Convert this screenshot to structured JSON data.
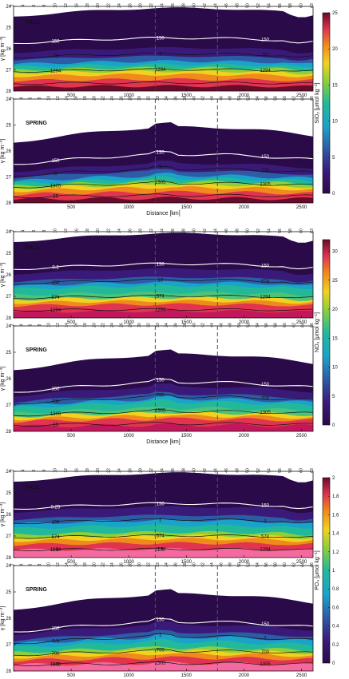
{
  "chart_data": [
    {
      "type": "heatmap",
      "variable": "SiO2",
      "colorbar_label": "SiO₂ [μmol kg⁻¹]",
      "colorbar_ticks": [
        "0",
        "5",
        "10",
        "15",
        "20",
        "25"
      ],
      "colorbar_range": [
        0,
        25
      ],
      "panels": [
        {
          "title": "FALL",
          "ylabel": "γ [kg m⁻³]",
          "yticks": [
            "24",
            "25",
            "26",
            "27",
            "28"
          ],
          "xticks": [
            "500",
            "1000",
            "1500",
            "2000",
            "2500"
          ],
          "station_ticks": [
            "2",
            "4",
            "6",
            "8",
            "10",
            "12",
            "16",
            "18",
            "20",
            "22",
            "24",
            "26",
            "29",
            "32",
            "34",
            "36",
            "38",
            "40",
            "42",
            "44",
            "46",
            "48",
            "50",
            "52",
            "54",
            "56",
            "58",
            "60",
            "63"
          ],
          "contour_labels": [
            "150",
            "150",
            "150",
            "75",
            "5",
            "33",
            "1294",
            "1294",
            "1294"
          ],
          "station_lines": [
            32,
            42
          ]
        },
        {
          "title": "SPRING",
          "ylabel": "γ [kg m⁻³]",
          "xlabel": "Distance [km]",
          "yticks": [
            "24",
            "25",
            "26",
            "27",
            "28"
          ],
          "xticks": [
            "500",
            "1000",
            "1500",
            "2000",
            "2500"
          ],
          "station_ticks": [
            "2",
            "4",
            "6",
            "8",
            "10",
            "12",
            "14",
            "16",
            "18",
            "20",
            "22",
            "24",
            "26",
            "28",
            "30",
            "32",
            "33",
            "34",
            "36",
            "38",
            "40",
            "42",
            "44",
            "46",
            "48",
            "50",
            "52",
            "54",
            "56",
            "58",
            "60",
            "62",
            "64",
            "66"
          ],
          "contour_labels": [
            "150",
            "150",
            "150",
            "5",
            "5",
            "700",
            "1305",
            "1305",
            "1305",
            "25"
          ],
          "station_lines": [
            32,
            42
          ]
        }
      ]
    },
    {
      "type": "heatmap",
      "variable": "NO3",
      "colorbar_label": "NO₃ [μmol kg⁻¹]",
      "colorbar_ticks": [
        "0",
        "5",
        "10",
        "15",
        "20",
        "25",
        "30"
      ],
      "colorbar_range": [
        0,
        32
      ],
      "panels": [
        {
          "title": "FALL",
          "ylabel": "γ [kg m⁻³]",
          "yticks": [
            "24",
            "25",
            "26",
            "27",
            "28"
          ],
          "xticks": [
            "500",
            "1000",
            "1500",
            "2000",
            "2500"
          ],
          "station_ticks": [
            "2",
            "4",
            "6",
            "8",
            "10",
            "12",
            "16",
            "18",
            "20",
            "22",
            "24",
            "26",
            "29",
            "32",
            "34",
            "36",
            "38",
            "40",
            "42",
            "44",
            "46",
            "48",
            "50",
            "52",
            "54",
            "56",
            "58",
            "60",
            "63"
          ],
          "contour_labels": [
            "0.2",
            "150",
            "150",
            "150",
            "10",
            "574",
            "574",
            "574",
            "1294",
            "1294",
            "1294"
          ],
          "station_lines": [
            32,
            42
          ]
        },
        {
          "title": "SPRING",
          "ylabel": "γ [kg m⁻³]",
          "xlabel": "Distance [km]",
          "yticks": [
            "24",
            "25",
            "26",
            "27",
            "28"
          ],
          "xticks": [
            "500",
            "1000",
            "1500",
            "2000",
            "2500"
          ],
          "station_ticks": [
            "2",
            "4",
            "6",
            "8",
            "10",
            "12",
            "14",
            "16",
            "18",
            "20",
            "22",
            "24",
            "26",
            "28",
            "30",
            "32",
            "33",
            "34",
            "36",
            "38",
            "40",
            "42",
            "44",
            "46",
            "48",
            "50",
            "52",
            "54",
            "56",
            "58",
            "60",
            "62",
            "64",
            "66"
          ],
          "contour_labels": [
            "150",
            "150",
            "150",
            "700",
            "700",
            "700",
            "1305",
            "1305",
            "1305",
            "25"
          ],
          "station_lines": [
            32,
            42
          ]
        }
      ]
    },
    {
      "type": "heatmap",
      "variable": "PO4",
      "colorbar_label": "PO₄ [μmol kg⁻¹]",
      "colorbar_ticks": [
        "0",
        "0.2",
        "0.4",
        "0.6",
        "0.8",
        "1",
        "1.2",
        "1.4",
        "1.6",
        "1.8",
        "2"
      ],
      "colorbar_range": [
        0,
        2
      ],
      "panels": [
        {
          "title": "FALL",
          "ylabel": "γ [kg m⁻³]",
          "yticks": [
            "24",
            "25",
            "26",
            "27",
            "28"
          ],
          "xticks": [
            "500",
            "1000",
            "1500",
            "2000",
            "2500"
          ],
          "station_ticks": [
            "2",
            "4",
            "6",
            "8",
            "10",
            "12",
            "16",
            "18",
            "20",
            "22",
            "24",
            "26",
            "29",
            "32",
            "34",
            "36",
            "38",
            "40",
            "42",
            "44",
            "46",
            "48",
            "50",
            "52",
            "54",
            "56",
            "58",
            "60",
            "63"
          ],
          "contour_labels": [
            "0.25",
            "150",
            "150",
            "150",
            "1",
            "1",
            "574",
            "574",
            "574",
            "1.5",
            "1.5",
            "1294",
            "1294",
            "1294"
          ],
          "station_lines": [
            32,
            42
          ]
        },
        {
          "title": "SPRING",
          "ylabel": "γ [kg m⁻³]",
          "xlabel": "Distance [km]",
          "yticks": [
            "24",
            "25",
            "26",
            "27",
            "28"
          ],
          "xticks": [
            "500",
            "1000",
            "1500",
            "2000",
            "2500"
          ],
          "station_ticks": [
            "2",
            "4",
            "6",
            "8",
            "10",
            "12",
            "14",
            "16",
            "18",
            "20",
            "22",
            "24",
            "26",
            "28",
            "30",
            "32",
            "33",
            "34",
            "36",
            "38",
            "40",
            "42",
            "44",
            "46",
            "48",
            "50",
            "52",
            "54",
            "56",
            "58",
            "60",
            "62",
            "64",
            "66"
          ],
          "contour_labels": [
            "150",
            "150",
            "150",
            "0.5",
            "1",
            "1",
            "700",
            "700",
            "700",
            "1.5",
            "1305",
            "1305",
            "1305"
          ],
          "station_lines": [
            32,
            42
          ]
        }
      ]
    }
  ]
}
